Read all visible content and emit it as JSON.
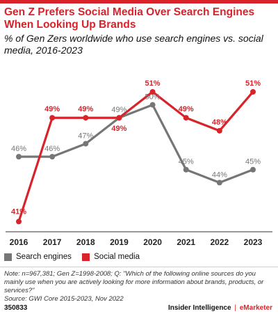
{
  "header": {
    "title": "Gen Z Prefers Social Media Over Search Engines When Looking Up Brands",
    "subtitle": "% of Gen Zers worldwide who use search engines vs. social media, 2016-2023"
  },
  "chart_data": {
    "type": "line",
    "title": "Gen Z Prefers Social Media Over Search Engines When Looking Up Brands",
    "subtitle": "% of Gen Zers worldwide who use search engines vs. social media, 2016-2023",
    "x": [
      "2016",
      "2017",
      "2018",
      "2019",
      "2020",
      "2021",
      "2022",
      "2023"
    ],
    "series": [
      {
        "name": "Search engines",
        "color": "#767676",
        "values": [
          46,
          46,
          47,
          49,
          50,
          45,
          44,
          45
        ],
        "labels": [
          "46%",
          "46%",
          "47%",
          "49%",
          "50%",
          "45%",
          "44%",
          "45%"
        ]
      },
      {
        "name": "Social media",
        "color": "#d8232a",
        "values": [
          41,
          49,
          49,
          49,
          51,
          49,
          48,
          51
        ],
        "labels": [
          "41%",
          "49%",
          "49%",
          "49%",
          "51%",
          "49%",
          "48%",
          "51%"
        ]
      }
    ],
    "ylim": [
      40.8,
      52.5
    ],
    "grid": false,
    "legend": "bottom-left",
    "xlabel": "",
    "ylabel": ""
  },
  "legend": {
    "items": [
      {
        "label": "Search engines",
        "color": "#767676"
      },
      {
        "label": "Social media",
        "color": "#d8232a"
      }
    ]
  },
  "footer": {
    "note": "Note: n=967,381; Gen Z=1998-2008; Q: \"Which of the following online sources do you mainly use when you are actively looking for more information about brands, products, or services?\"",
    "source": "Source: GWI Core 2015-2023, Nov 2022",
    "chart_id": "350833",
    "brand_left": "Insider Intelligence",
    "brand_sep": "|",
    "brand_right": "eMarketer"
  }
}
